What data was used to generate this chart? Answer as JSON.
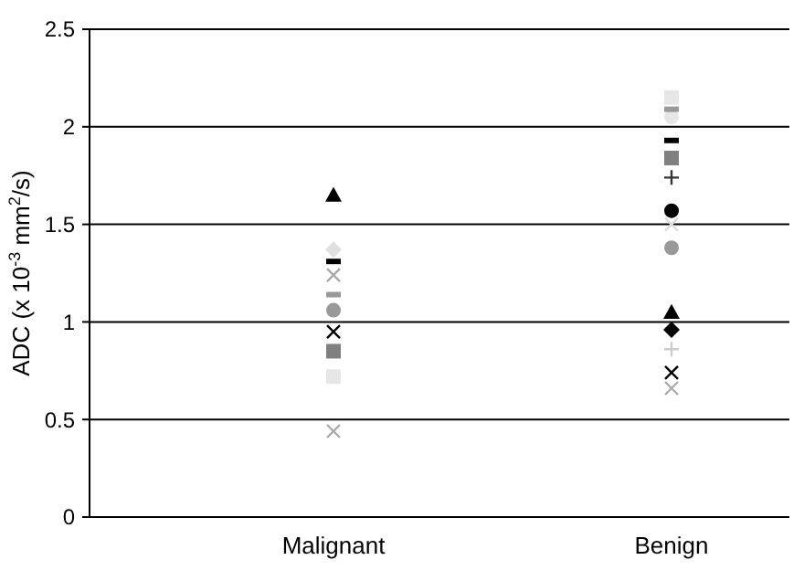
{
  "chart_data": {
    "type": "scatter",
    "ylabel": "ADC (x 10$^{-3}$ mm$^{2}$/s)",
    "categories": [
      "Malignant",
      "Benign"
    ],
    "ylim": [
      0,
      2.5
    ],
    "yticks": [
      0,
      0.5,
      1,
      1.5,
      2,
      2.5
    ],
    "grid": "y",
    "series": [
      {
        "color": "#000000",
        "marker": "triangle",
        "values": [
          1.65,
          1.05
        ]
      },
      {
        "color": "#000000",
        "marker": "diamond",
        "values": [
          null,
          0.96
        ]
      },
      {
        "color": "#e0e0e0",
        "marker": "diamond",
        "values": [
          1.37,
          null
        ]
      },
      {
        "color": "#808080",
        "marker": "square",
        "values": [
          0.85,
          1.84
        ]
      },
      {
        "color": "#e6e6e6",
        "marker": "square",
        "values": [
          0.72,
          2.15
        ]
      },
      {
        "color": "#000000",
        "marker": "circle",
        "values": [
          null,
          1.57
        ]
      },
      {
        "color": "#999999",
        "marker": "circle",
        "values": [
          1.06,
          1.38
        ]
      },
      {
        "color": "#e6e6e6",
        "marker": "circle",
        "values": [
          null,
          2.05
        ]
      },
      {
        "color": "#000000",
        "marker": "cross",
        "values": [
          0.95,
          0.74
        ]
      },
      {
        "color": "#aaaaaa",
        "marker": "cross",
        "values": [
          0.44,
          null
        ]
      },
      {
        "color": "#aaaaaa",
        "marker": "cross",
        "values": [
          1.24,
          0.66
        ]
      },
      {
        "color": "#dddddd",
        "marker": "cross",
        "values": [
          null,
          1.5
        ]
      },
      {
        "color": "#333333",
        "marker": "plus",
        "values": [
          null,
          1.74
        ]
      },
      {
        "color": "#cccccc",
        "marker": "plus",
        "values": [
          null,
          0.86
        ]
      },
      {
        "color": "#999999",
        "marker": "square",
        "values": [
          1.14,
          2.09
        ]
      },
      {
        "color": "#000000",
        "marker": "square",
        "values": [
          1.31,
          1.93
        ]
      }
    ]
  }
}
